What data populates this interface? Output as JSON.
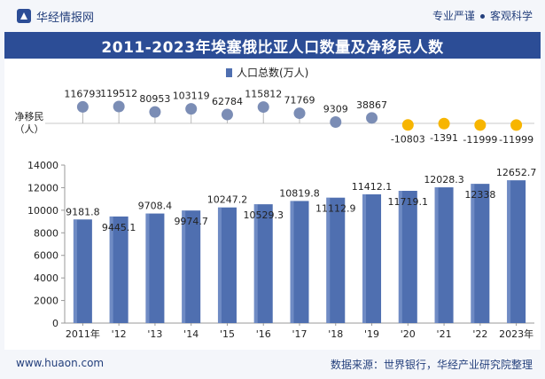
{
  "header": {
    "site_name": "华经情报网",
    "tag_left": "专业严谨",
    "tag_right": "客观科学"
  },
  "chart_title": "2011-2023年埃塞俄比亚人口数量及净移民人数",
  "footer": {
    "url": "www.huaon.com",
    "source": "数据来源：世界银行，华经产业研究院整理"
  },
  "colors": {
    "title_bg": "#2c4d96",
    "bar": "#4f6fb0",
    "bar_light": "#8aa3d6",
    "positive_dot": "#7b8db5",
    "negative_dot": "#f7b500"
  },
  "chart_data": [
    {
      "type": "lollipop",
      "ylabel": "净移民（人）",
      "categories": [
        "2011年",
        "'12",
        "'13",
        "'14",
        "'15",
        "'16",
        "'17",
        "'18",
        "'19",
        "'20",
        "'21",
        "'22",
        "2023年"
      ],
      "values": [
        116793,
        119512,
        80953,
        103119,
        62784,
        115812,
        71769,
        9309,
        38867,
        -10803,
        -1391,
        -11999,
        -11999
      ],
      "value_labels": [
        "116793",
        "119512",
        "80953",
        "103119",
        "62784",
        "115812",
        "71769",
        "9309",
        "38867",
        "-10803",
        "-1391",
        "-11999",
        "-11999"
      ]
    },
    {
      "type": "bar",
      "legend": [
        "人口总数(万人)"
      ],
      "legend_position": "top-center",
      "categories": [
        "2011年",
        "'12",
        "'13",
        "'14",
        "'15",
        "'16",
        "'17",
        "'18",
        "'19",
        "'20",
        "'21",
        "'22",
        "2023年"
      ],
      "series": [
        {
          "name": "人口总数(万人)",
          "values": [
            9181.8,
            9445.1,
            9708.4,
            9974.7,
            10247.2,
            10529.3,
            10819.8,
            11112.9,
            11412.1,
            11719.1,
            12028.3,
            12338,
            12652.7
          ],
          "value_labels": [
            "9181.8",
            "9445.1",
            "9708.4",
            "9974.7",
            "10247.2",
            "10529.3",
            "10819.8",
            "11112.9",
            "11412.1",
            "11719.1",
            "12028.3",
            "12338",
            "12652.7"
          ]
        }
      ],
      "ylim": [
        0,
        14000
      ],
      "yticks": [
        0,
        2000,
        4000,
        6000,
        8000,
        10000,
        12000,
        14000
      ],
      "ytick_labels": [
        "0",
        "2000",
        "4000",
        "6000",
        "8000",
        "10000",
        "12000",
        "14000"
      ],
      "grid": false
    }
  ]
}
